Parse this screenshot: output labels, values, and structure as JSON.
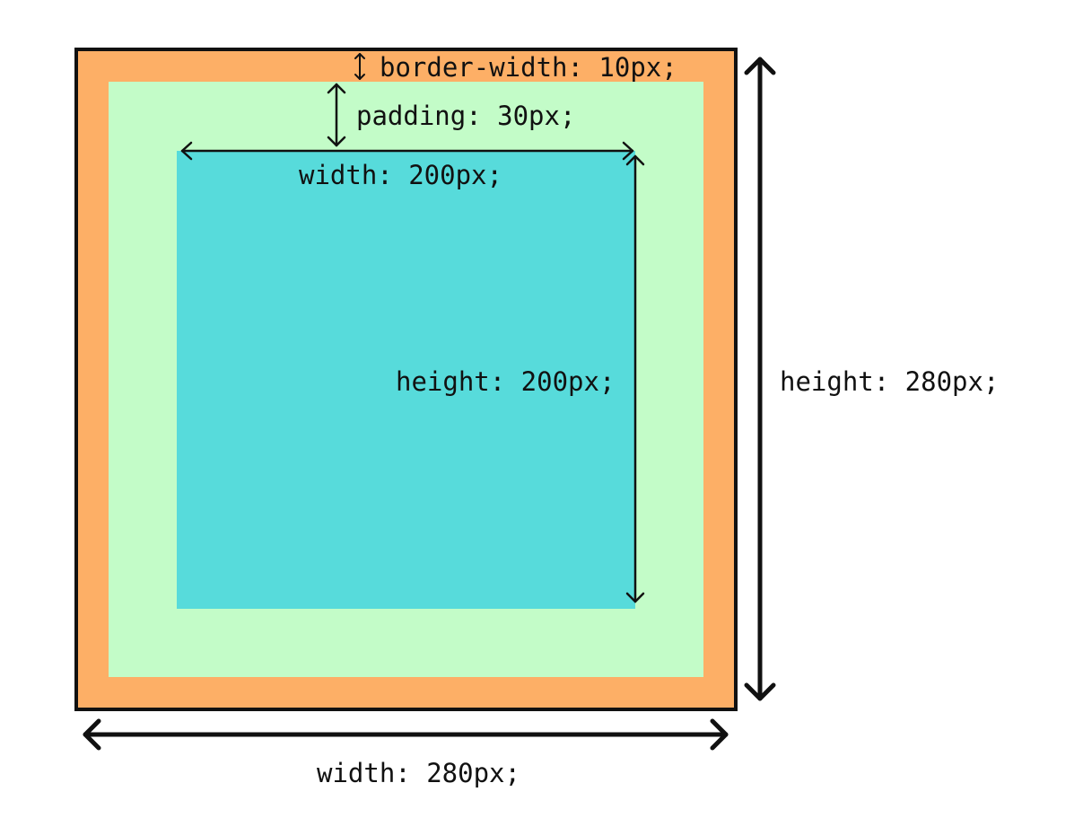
{
  "colors": {
    "border": "#FDAF66",
    "padding": "#C3FCC8",
    "content": "#57DBDB",
    "outline": "#111111",
    "arrow": "#111111",
    "background": "#FFFFFF"
  },
  "labels": {
    "border_width": "border-width: 10px;",
    "padding": "padding: 30px;",
    "content_width": "width: 200px;",
    "content_height": "height: 200px;",
    "outer_height": "height: 280px;",
    "outer_width": "width: 280px;"
  }
}
